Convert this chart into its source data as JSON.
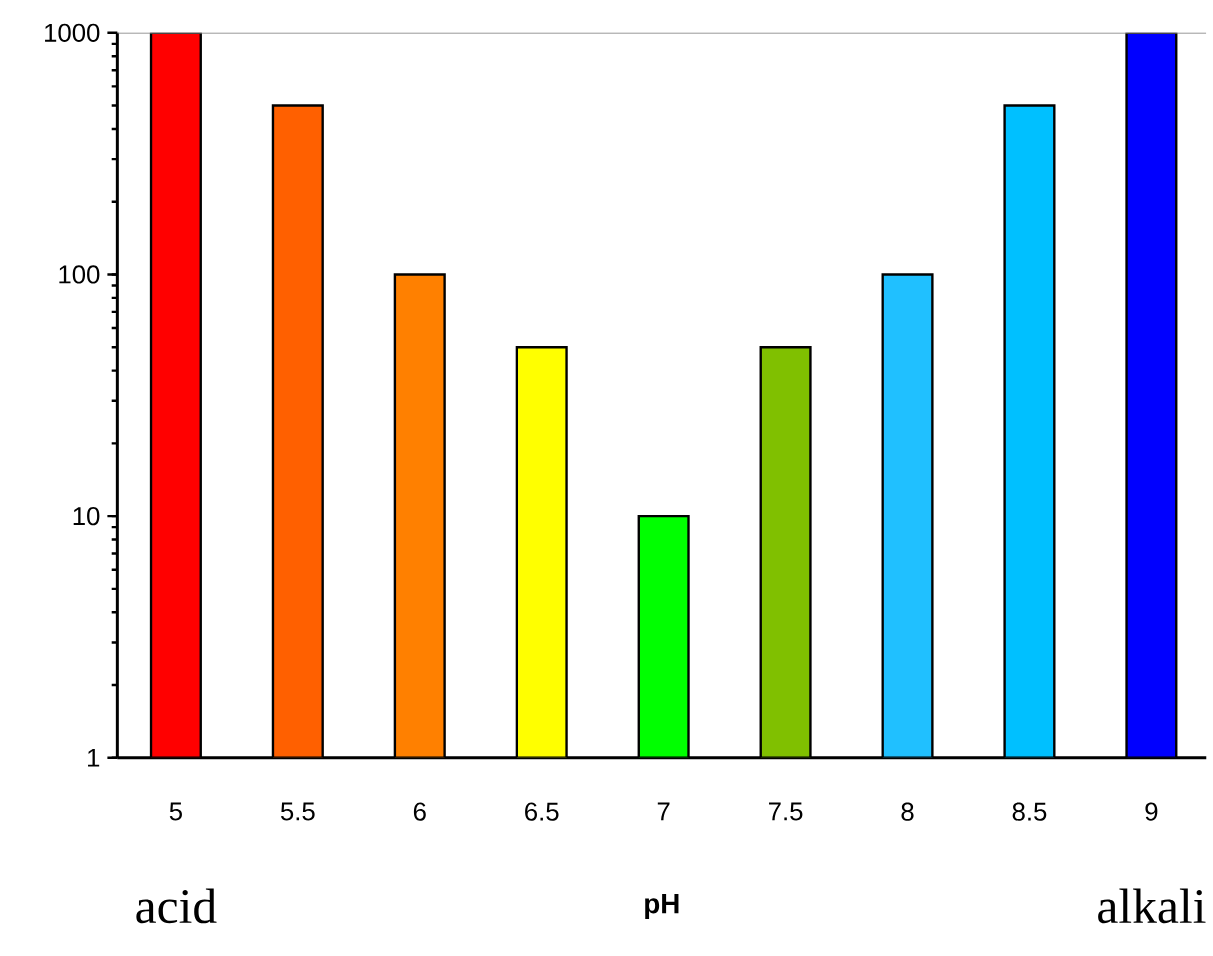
{
  "chart_data": {
    "type": "bar",
    "xlabel": "pH",
    "categories": [
      "5",
      "5.5",
      "6",
      "6.5",
      "7",
      "7.5",
      "8",
      "8.5",
      "9"
    ],
    "values": [
      1000,
      500,
      100,
      50,
      10,
      50,
      100,
      500,
      1000
    ],
    "colors": [
      "#ff0000",
      "#ff6000",
      "#ff8000",
      "#ffff00",
      "#00ff00",
      "#80c000",
      "#20c0ff",
      "#00c0ff",
      "#0000ff"
    ],
    "log": "y",
    "ylim": [
      1,
      1000
    ],
    "yticks": [
      1,
      10,
      100,
      1000
    ],
    "ref_lines": [
      {
        "axis": "y",
        "value": 1000,
        "color": "#808080"
      }
    ],
    "annotations": [
      "acid",
      "alkali"
    ]
  }
}
